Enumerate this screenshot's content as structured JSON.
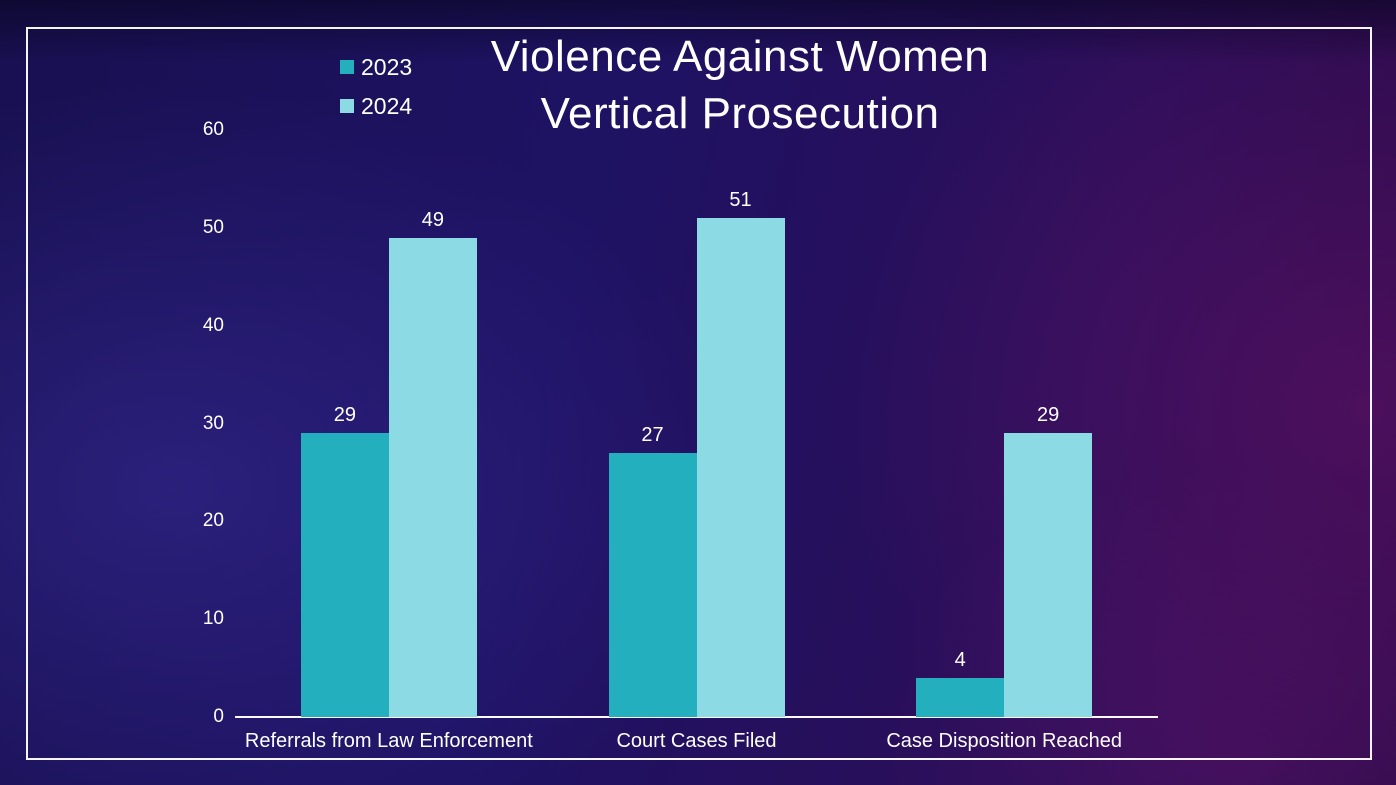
{
  "title": {
    "line1": "Violence Against Women",
    "line2": "Vertical Prosecution"
  },
  "colors": {
    "series_2023": "#23AFBD",
    "series_2024": "#8CDAE3",
    "text": "#FFFFFF",
    "axis": "#FBFBFF",
    "frame_border": "#FFFFFF"
  },
  "chart_data": {
    "type": "bar",
    "title": "Violence Against Women Vertical Prosecution",
    "categories": [
      "Referrals from Law Enforcement",
      "Court Cases Filed",
      "Case Disposition Reached"
    ],
    "series": [
      {
        "name": "2023",
        "color": "#23AFBD",
        "values": [
          29,
          27,
          4
        ]
      },
      {
        "name": "2024",
        "color": "#8CDAE3",
        "values": [
          49,
          51,
          29
        ]
      }
    ],
    "xlabel": "",
    "ylabel": "",
    "ylim": [
      0,
      60
    ],
    "yticks": [
      0,
      10,
      20,
      30,
      40,
      50,
      60
    ],
    "grid": false,
    "legend_position": "top-left",
    "data_labels": true
  }
}
